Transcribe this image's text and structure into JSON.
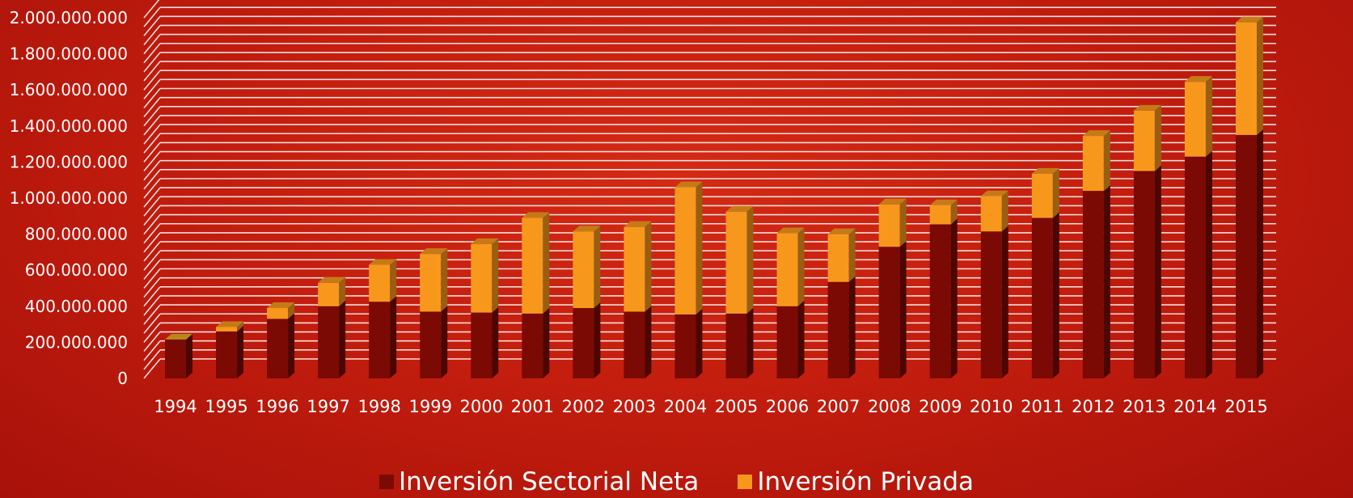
{
  "chart_data": {
    "type": "bar",
    "stacked": true,
    "style": "3d",
    "categories": [
      "1994",
      "1995",
      "1996",
      "1997",
      "1998",
      "1999",
      "2000",
      "2001",
      "2002",
      "2003",
      "2004",
      "2005",
      "2006",
      "2007",
      "2008",
      "2009",
      "2010",
      "2011",
      "2012",
      "2013",
      "2014",
      "2015"
    ],
    "series": [
      {
        "name": "Inversión Sectorial Neta",
        "color": "#7b0a04",
        "values": [
          215000000,
          260000000,
          330000000,
          400000000,
          425000000,
          370000000,
          365000000,
          360000000,
          390000000,
          370000000,
          355000000,
          360000000,
          400000000,
          535000000,
          730000000,
          855000000,
          815000000,
          890000000,
          1040000000,
          1150000000,
          1230000000,
          1350000000
        ]
      },
      {
        "name": "Inversión Privada",
        "color": "#f7981d",
        "values": [
          0,
          25000000,
          60000000,
          130000000,
          205000000,
          320000000,
          380000000,
          530000000,
          425000000,
          470000000,
          705000000,
          565000000,
          405000000,
          265000000,
          235000000,
          105000000,
          195000000,
          245000000,
          305000000,
          335000000,
          415000000,
          625000000
        ]
      }
    ],
    "ylim": [
      0,
      2000000000
    ],
    "yticks": [
      0,
      200000000,
      400000000,
      600000000,
      800000000,
      1000000000,
      1200000000,
      1400000000,
      1600000000,
      1800000000,
      2000000000
    ],
    "ytick_labels": [
      "0",
      "200.000.000",
      "400.000.000",
      "600.000.000",
      "800.000.000",
      "1.000.000.000",
      "1.200.000.000",
      "1.400.000.000",
      "1.600.000.000",
      "1.800.000.000",
      "2.000.000.000"
    ],
    "grid": true,
    "legend_position": "bottom",
    "title": "",
    "xlabel": "",
    "ylabel": ""
  }
}
